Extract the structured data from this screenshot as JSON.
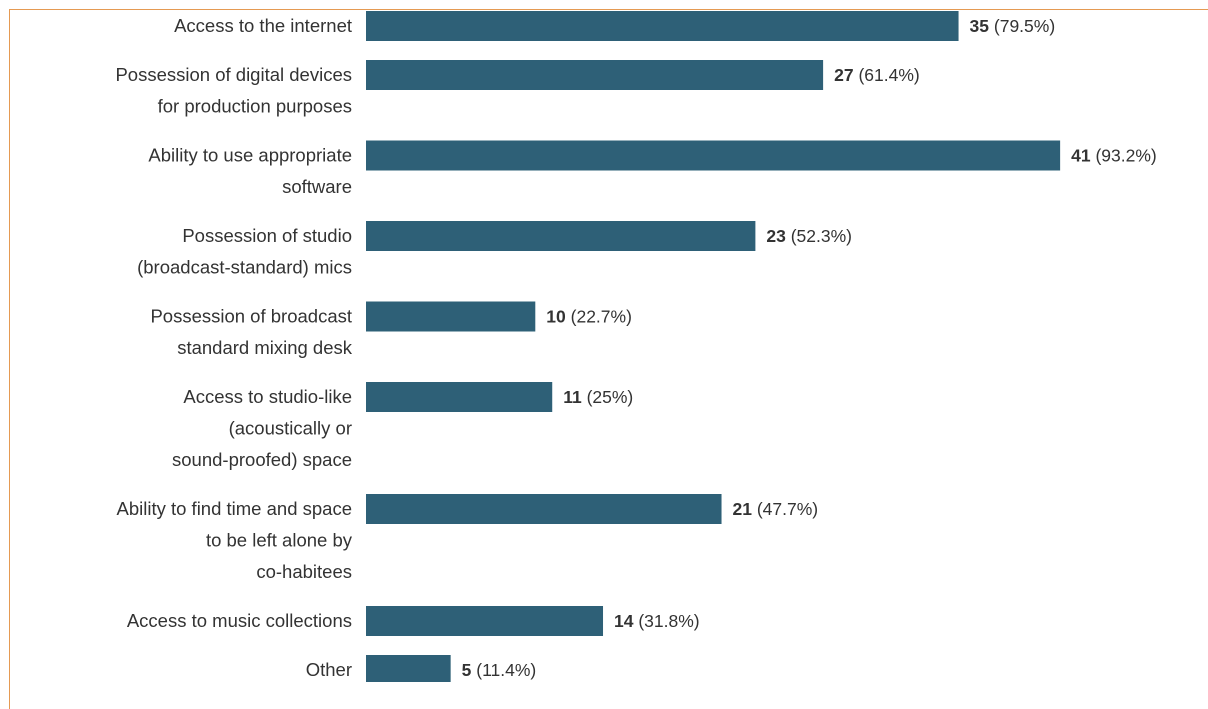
{
  "chart_data": {
    "type": "bar",
    "orientation": "horizontal",
    "categories": [
      "Access to the internet",
      "Possession of digital devices for production purposes",
      "Ability to use appropriate software",
      "Possession of studio (broadcast-standard) mics",
      "Possession of broadcast standard mixing desk",
      "Access to studio-like (acoustically or sound-proofed) space",
      "Ability to find time and space to be left alone by co-habitees",
      "Access to music collections",
      "Other"
    ],
    "category_lines": [
      [
        "Access to the internet"
      ],
      [
        "Possession of digital devices",
        "for production purposes"
      ],
      [
        "Ability to use appropriate",
        "software"
      ],
      [
        "Possession of studio",
        "(broadcast-standard) mics"
      ],
      [
        "Possession of broadcast",
        "standard mixing desk"
      ],
      [
        "Access to studio-like",
        "(acoustically or",
        "sound-proofed) space"
      ],
      [
        "Ability to find time and space",
        "to be left alone by",
        "co-habitees"
      ],
      [
        "Access to music collections"
      ],
      [
        "Other"
      ]
    ],
    "values": [
      35,
      27,
      41,
      23,
      10,
      11,
      21,
      14,
      5
    ],
    "percent_labels": [
      "(79.5%)",
      "(61.4%)",
      "(93.2%)",
      "(52.3%)",
      "(22.7%)",
      "(25%)",
      "(47.7%)",
      "(31.8%)",
      "(11.4%)"
    ],
    "bar_color": "#2e6077",
    "border_color": "#e59a52",
    "grid": false,
    "legend": "none"
  }
}
